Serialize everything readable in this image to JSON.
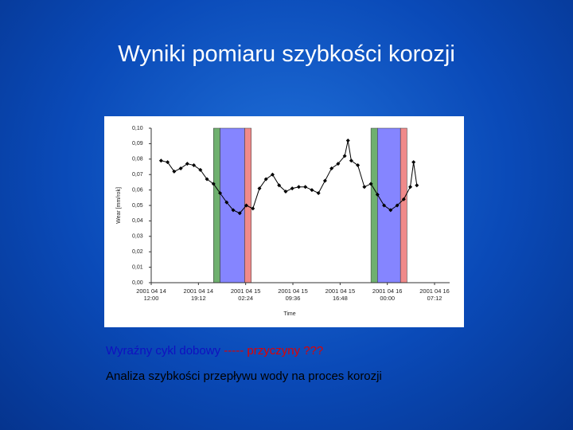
{
  "slide": {
    "title": "Wyniki pomiaru szybkości korozji",
    "note_blue": "Wyraźny cykl dobowy",
    "note_red": "----- przyczyny ???",
    "note_black": "Analiza szybkości przepływu wody na proces korozji"
  },
  "chart_data": {
    "type": "line",
    "x_label": "Time",
    "y_label": "Wear [mm/rok]",
    "xlim": [
      "2001 04 14 12:00",
      "2001 04 16 09:30"
    ],
    "xticks": [
      "2001 04 14 12:00",
      "2001 04 14 19:12",
      "2001 04 15 02:24",
      "2001 04 15 09:36",
      "2001 04 15 16:48",
      "2001 04 16 00:00",
      "2001 04 16 07:12"
    ],
    "ylim": [
      0,
      0.1
    ],
    "yticks": [
      {
        "value": 0,
        "label": "0,00"
      },
      {
        "value": 0.01,
        "label": "0,01"
      },
      {
        "value": 0.02,
        "label": "0,02"
      },
      {
        "value": 0.03,
        "label": "0,03"
      },
      {
        "value": 0.04,
        "label": "0,04"
      },
      {
        "value": 0.05,
        "label": "0,05"
      },
      {
        "value": 0.06,
        "label": "0,06"
      },
      {
        "value": 0.07,
        "label": "0,07"
      },
      {
        "value": 0.08,
        "label": "0,08"
      },
      {
        "value": 0.09,
        "label": "0,09"
      },
      {
        "value": 0.1,
        "label": "0,10"
      }
    ],
    "bands": [
      {
        "start": "2001 04 14 21:30",
        "end": "2001 04 14 22:30",
        "color": "#6fb06f"
      },
      {
        "start": "2001 04 14 22:30",
        "end": "2001 04 15 02:15",
        "color": "#8585ff"
      },
      {
        "start": "2001 04 15 02:15",
        "end": "2001 04 15 03:15",
        "color": "#f08a8a"
      },
      {
        "start": "2001 04 15 21:30",
        "end": "2001 04 15 22:30",
        "color": "#6fb06f"
      },
      {
        "start": "2001 04 15 22:30",
        "end": "2001 04 16 02:00",
        "color": "#8585ff"
      },
      {
        "start": "2001 04 16 02:00",
        "end": "2001 04 16 03:00",
        "color": "#f08a8a"
      }
    ],
    "series": [
      {
        "color": "#000000",
        "x": [
          "2001 04 14 13:30",
          "2001 04 14 14:30",
          "2001 04 14 15:30",
          "2001 04 14 16:30",
          "2001 04 14 17:30",
          "2001 04 14 18:30",
          "2001 04 14 19:30",
          "2001 04 14 20:30",
          "2001 04 14 21:30",
          "2001 04 14 22:30",
          "2001 04 14 23:30",
          "2001 04 15 00:30",
          "2001 04 15 01:30",
          "2001 04 15 02:30",
          "2001 04 15 03:30",
          "2001 04 15 04:30",
          "2001 04 15 05:30",
          "2001 04 15 06:30",
          "2001 04 15 07:30",
          "2001 04 15 08:30",
          "2001 04 15 09:30",
          "2001 04 15 10:30",
          "2001 04 15 11:30",
          "2001 04 15 12:30",
          "2001 04 15 13:30",
          "2001 04 15 14:30",
          "2001 04 15 15:30",
          "2001 04 15 16:30",
          "2001 04 15 17:30",
          "2001 04 15 18:00",
          "2001 04 15 18:30",
          "2001 04 15 19:30",
          "2001 04 15 20:30",
          "2001 04 15 21:30",
          "2001 04 15 22:30",
          "2001 04 15 23:30",
          "2001 04 16 00:30",
          "2001 04 16 01:30",
          "2001 04 16 02:30",
          "2001 04 16 03:30",
          "2001 04 16 04:00",
          "2001 04 16 04:30"
        ],
        "values": [
          0.079,
          0.078,
          0.072,
          0.074,
          0.077,
          0.076,
          0.073,
          0.067,
          0.064,
          0.058,
          0.052,
          0.047,
          0.045,
          0.05,
          0.048,
          0.061,
          0.067,
          0.07,
          0.063,
          0.059,
          0.061,
          0.062,
          0.062,
          0.06,
          0.058,
          0.066,
          0.074,
          0.077,
          0.082,
          0.092,
          0.079,
          0.076,
          0.062,
          0.064,
          0.057,
          0.05,
          0.047,
          0.05,
          0.054,
          0.062,
          0.078,
          0.063
        ]
      }
    ]
  }
}
